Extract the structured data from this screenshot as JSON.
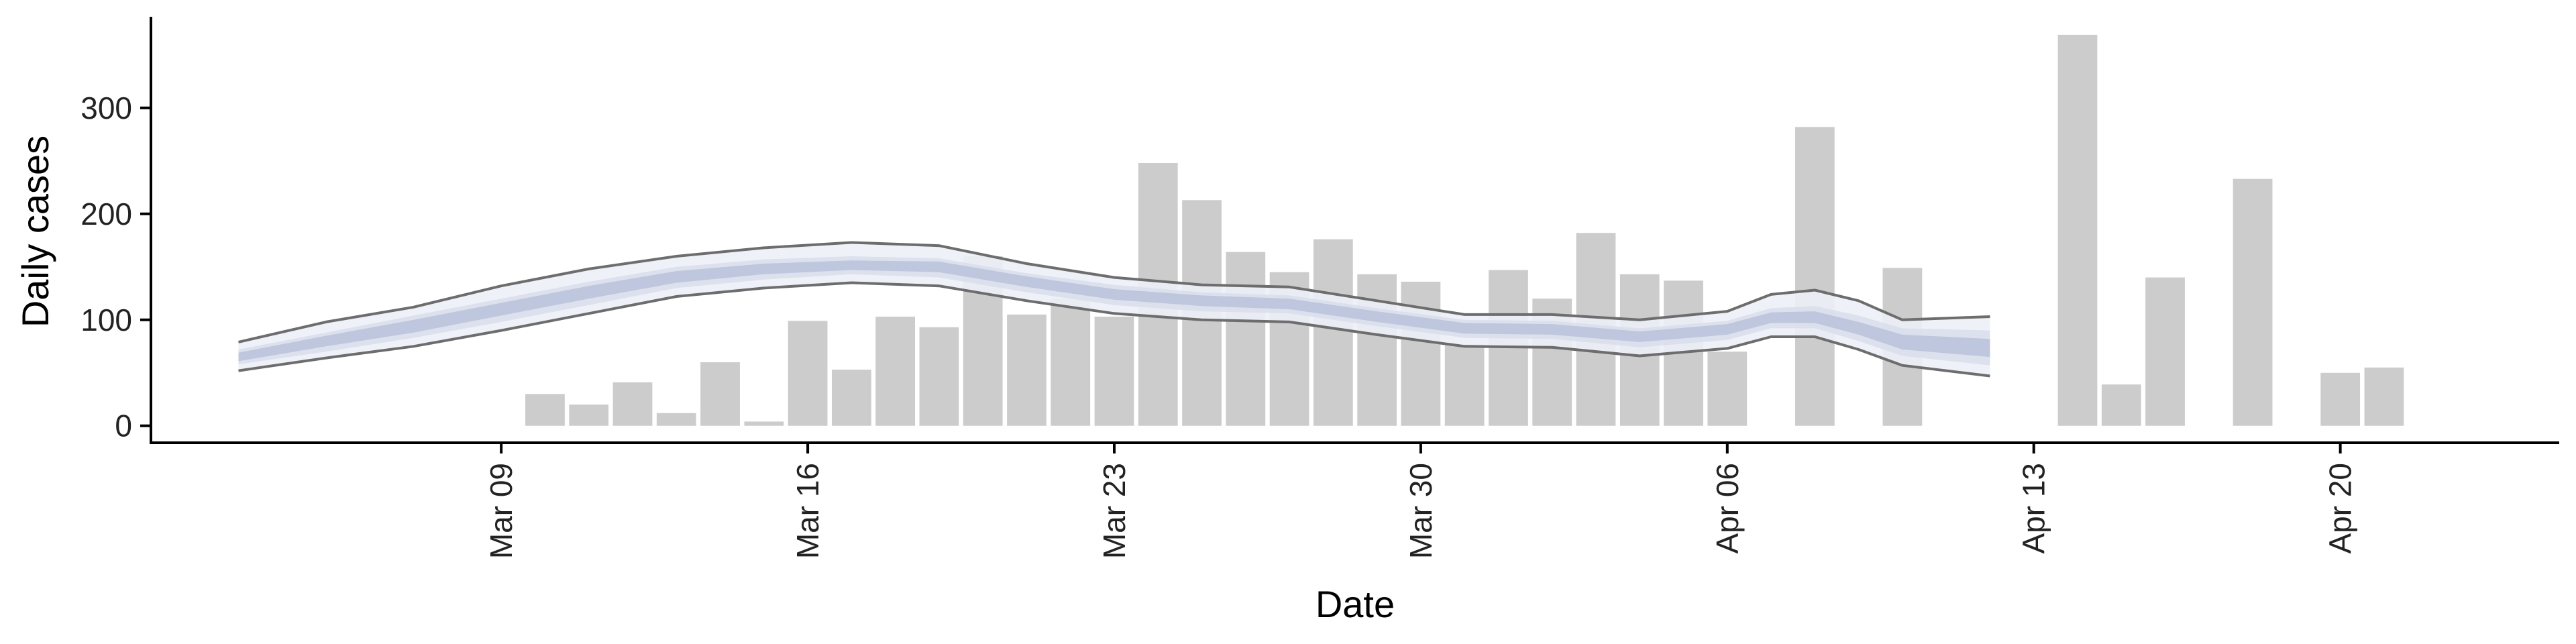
{
  "chart_data": {
    "type": "bar",
    "xlabel": "Date",
    "ylabel": "Daily cases",
    "ylim": [
      -16,
      386
    ],
    "xlim": [
      "2020-03-01",
      "2020-04-25"
    ],
    "yticks": [
      0,
      100,
      200,
      300
    ],
    "xticks": [
      {
        "date": "2020-03-09",
        "label": "Mar 09"
      },
      {
        "date": "2020-03-16",
        "label": "Mar 16"
      },
      {
        "date": "2020-03-23",
        "label": "Mar 23"
      },
      {
        "date": "2020-03-30",
        "label": "Mar 30"
      },
      {
        "date": "2020-04-06",
        "label": "Apr 06"
      },
      {
        "date": "2020-04-13",
        "label": "Apr 13"
      },
      {
        "date": "2020-04-20",
        "label": "Apr 20"
      }
    ],
    "colors": {
      "bars": "#cccccc",
      "band_outer": "#eceff7",
      "band_mid": "#d9deeb",
      "band_inner": "#b9c2d9",
      "bound_line": "#6d6d6d",
      "axis": "#000000"
    },
    "cases": [
      {
        "date": "2020-03-10",
        "value": 30
      },
      {
        "date": "2020-03-11",
        "value": 20
      },
      {
        "date": "2020-03-12",
        "value": 41
      },
      {
        "date": "2020-03-13",
        "value": 12
      },
      {
        "date": "2020-03-14",
        "value": 60
      },
      {
        "date": "2020-03-15",
        "value": 4
      },
      {
        "date": "2020-03-16",
        "value": 99
      },
      {
        "date": "2020-03-17",
        "value": 53
      },
      {
        "date": "2020-03-18",
        "value": 103
      },
      {
        "date": "2020-03-19",
        "value": 93
      },
      {
        "date": "2020-03-20",
        "value": 160
      },
      {
        "date": "2020-03-21",
        "value": 105
      },
      {
        "date": "2020-03-22",
        "value": 120
      },
      {
        "date": "2020-03-23",
        "value": 103
      },
      {
        "date": "2020-03-24",
        "value": 248
      },
      {
        "date": "2020-03-25",
        "value": 213
      },
      {
        "date": "2020-03-26",
        "value": 164
      },
      {
        "date": "2020-03-27",
        "value": 145
      },
      {
        "date": "2020-03-28",
        "value": 176
      },
      {
        "date": "2020-03-29",
        "value": 143
      },
      {
        "date": "2020-03-30",
        "value": 136
      },
      {
        "date": "2020-03-31",
        "value": 77
      },
      {
        "date": "2020-04-01",
        "value": 147
      },
      {
        "date": "2020-04-02",
        "value": 120
      },
      {
        "date": "2020-04-03",
        "value": 182
      },
      {
        "date": "2020-04-04",
        "value": 143
      },
      {
        "date": "2020-04-05",
        "value": 137
      },
      {
        "date": "2020-04-06",
        "value": 70
      },
      {
        "date": "2020-04-08",
        "value": 282
      },
      {
        "date": "2020-04-10",
        "value": 149
      },
      {
        "date": "2020-04-14",
        "value": 369
      },
      {
        "date": "2020-04-15",
        "value": 39
      },
      {
        "date": "2020-04-16",
        "value": 140
      },
      {
        "date": "2020-04-18",
        "value": 233
      },
      {
        "date": "2020-04-20",
        "value": 50
      },
      {
        "date": "2020-04-21",
        "value": 55
      }
    ],
    "estimate": [
      {
        "date": "2020-03-03",
        "lower": 52,
        "mid_lo": 58,
        "inner_lo": 61,
        "median": 65,
        "inner_hi": 69,
        "mid_hi": 72,
        "upper": 79
      },
      {
        "date": "2020-03-05",
        "lower": 64,
        "mid_lo": 70,
        "inner_lo": 75,
        "median": 80,
        "inner_hi": 85,
        "mid_hi": 88,
        "upper": 98
      },
      {
        "date": "2020-03-07",
        "lower": 75,
        "mid_lo": 83,
        "inner_lo": 88,
        "median": 94,
        "inner_hi": 100,
        "mid_hi": 104,
        "upper": 112
      },
      {
        "date": "2020-03-09",
        "lower": 90,
        "mid_lo": 98,
        "inner_lo": 104,
        "median": 110,
        "inner_hi": 116,
        "mid_hi": 120,
        "upper": 132
      },
      {
        "date": "2020-03-11",
        "lower": 106,
        "mid_lo": 114,
        "inner_lo": 120,
        "median": 126,
        "inner_hi": 132,
        "mid_hi": 136,
        "upper": 148
      },
      {
        "date": "2020-03-13",
        "lower": 122,
        "mid_lo": 130,
        "inner_lo": 135,
        "median": 140,
        "inner_hi": 146,
        "mid_hi": 150,
        "upper": 160
      },
      {
        "date": "2020-03-15",
        "lower": 130,
        "mid_lo": 138,
        "inner_lo": 143,
        "median": 148,
        "inner_hi": 153,
        "mid_hi": 157,
        "upper": 168
      },
      {
        "date": "2020-03-17",
        "lower": 135,
        "mid_lo": 143,
        "inner_lo": 147,
        "median": 152,
        "inner_hi": 156,
        "mid_hi": 160,
        "upper": 173
      },
      {
        "date": "2020-03-19",
        "lower": 132,
        "mid_lo": 140,
        "inner_lo": 145,
        "median": 150,
        "inner_hi": 155,
        "mid_hi": 158,
        "upper": 170
      },
      {
        "date": "2020-03-21",
        "lower": 118,
        "mid_lo": 126,
        "inner_lo": 131,
        "median": 136,
        "inner_hi": 141,
        "mid_hi": 144,
        "upper": 153
      },
      {
        "date": "2020-03-23",
        "lower": 106,
        "mid_lo": 114,
        "inner_lo": 119,
        "median": 124,
        "inner_hi": 129,
        "mid_hi": 133,
        "upper": 140
      },
      {
        "date": "2020-03-25",
        "lower": 100,
        "mid_lo": 108,
        "inner_lo": 113,
        "median": 118,
        "inner_hi": 123,
        "mid_hi": 126,
        "upper": 133
      },
      {
        "date": "2020-03-27",
        "lower": 98,
        "mid_lo": 106,
        "inner_lo": 110,
        "median": 115,
        "inner_hi": 120,
        "mid_hi": 123,
        "upper": 131
      },
      {
        "date": "2020-03-29",
        "lower": 86,
        "mid_lo": 94,
        "inner_lo": 98,
        "median": 103,
        "inner_hi": 108,
        "mid_hi": 111,
        "upper": 118
      },
      {
        "date": "2020-03-31",
        "lower": 75,
        "mid_lo": 83,
        "inner_lo": 87,
        "median": 92,
        "inner_hi": 97,
        "mid_hi": 100,
        "upper": 105
      },
      {
        "date": "2020-04-02",
        "lower": 74,
        "mid_lo": 82,
        "inner_lo": 86,
        "median": 91,
        "inner_hi": 96,
        "mid_hi": 99,
        "upper": 105
      },
      {
        "date": "2020-04-04",
        "lower": 66,
        "mid_lo": 74,
        "inner_lo": 79,
        "median": 84,
        "inner_hi": 89,
        "mid_hi": 92,
        "upper": 100
      },
      {
        "date": "2020-04-06",
        "lower": 73,
        "mid_lo": 81,
        "inner_lo": 86,
        "median": 91,
        "inner_hi": 96,
        "mid_hi": 99,
        "upper": 108
      },
      {
        "date": "2020-04-07",
        "lower": 84,
        "mid_lo": 92,
        "inner_lo": 97,
        "median": 102,
        "inner_hi": 107,
        "mid_hi": 111,
        "upper": 124
      },
      {
        "date": "2020-04-08",
        "lower": 84,
        "mid_lo": 92,
        "inner_lo": 97,
        "median": 103,
        "inner_hi": 108,
        "mid_hi": 113,
        "upper": 128
      },
      {
        "date": "2020-04-09",
        "lower": 72,
        "mid_lo": 80,
        "inner_lo": 86,
        "median": 92,
        "inner_hi": 98,
        "mid_hi": 104,
        "upper": 118
      },
      {
        "date": "2020-04-10",
        "lower": 57,
        "mid_lo": 66,
        "inner_lo": 72,
        "median": 79,
        "inner_hi": 86,
        "mid_hi": 92,
        "upper": 100
      },
      {
        "date": "2020-04-12",
        "lower": 47,
        "mid_lo": 57,
        "inner_lo": 65,
        "median": 74,
        "inner_hi": 82,
        "mid_hi": 90,
        "upper": 103
      }
    ]
  }
}
